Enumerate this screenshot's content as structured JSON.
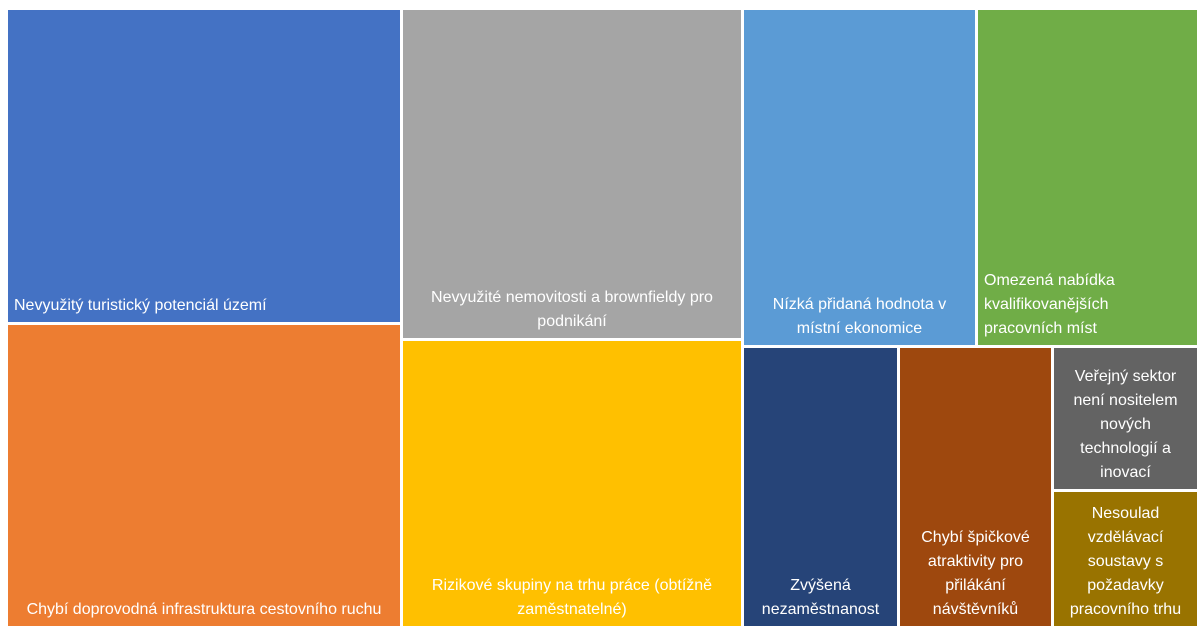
{
  "chart_data": {
    "type": "treemap",
    "items": [
      {
        "label": "Nevyužitý turistický potenciál území",
        "value": 124,
        "color": "#4472C4"
      },
      {
        "label": "Chybí doprovodná infrastruktura cestovního ruchu",
        "value": 121,
        "color": "#ED7D31"
      },
      {
        "label": "Nevyužité nemovitosti a brownfieldy pro podnikání",
        "value": 113,
        "color": "#A5A5A5"
      },
      {
        "label": "Rizikové skupiny na trhu práce (obtížně zaměstnatelné)",
        "value": 98,
        "color": "#FFC000"
      },
      {
        "label": "Nízká přidaná hodnota v místní ekonomice",
        "value": 78,
        "color": "#5B9BD5"
      },
      {
        "label": "Omezená nabídka kvalifikovanějších pracovních míst",
        "value": 71,
        "color": "#70AD47"
      },
      {
        "label": "Zvýšená nezaměstnanost",
        "value": 45,
        "color": "#264478"
      },
      {
        "label": "Chybí špičkové atraktivity pro přilákání návštěvníků",
        "value": 44,
        "color": "#9E480E"
      },
      {
        "label": "Veřejný sektor není nositelem nových technologií a inovací",
        "value": 21,
        "color": "#636363"
      },
      {
        "label": "Nesoulad vzdělávací soustavy s požadavky pracovního trhu",
        "value": 21,
        "color": "#997300"
      }
    ]
  }
}
